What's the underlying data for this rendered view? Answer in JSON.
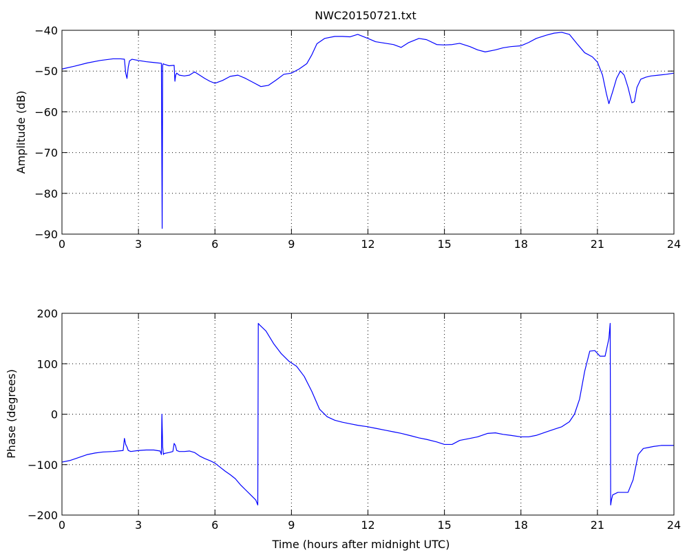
{
  "figure": {
    "title": "NWC20150721.txt",
    "line_color": "#0000ff"
  },
  "chart_data": [
    {
      "type": "line",
      "title": "NWC20150721.txt",
      "xlabel": "",
      "ylabel": "Amplitude (dB)",
      "xlim": [
        0,
        24
      ],
      "ylim": [
        -90,
        -40
      ],
      "xticks": [
        0,
        3,
        6,
        9,
        12,
        15,
        18,
        21,
        24
      ],
      "xtick_labels": [
        "0",
        "3",
        "6",
        "9",
        "12",
        "15",
        "18",
        "21",
        "24"
      ],
      "yticks": [
        -90,
        -80,
        -70,
        -60,
        -50,
        -40
      ],
      "ytick_labels": [
        "−90",
        "−80",
        "−70",
        "−60",
        "−50",
        "−40"
      ],
      "grid": true,
      "series": [
        {
          "color": "#0000ff",
          "x": [
            0,
            0.5,
            1,
            1.5,
            2,
            2.3,
            2.45,
            2.5,
            2.55,
            2.6,
            2.65,
            2.75,
            3,
            3.3,
            3.6,
            3.9,
            3.93,
            3.95,
            3.97,
            4,
            4.2,
            4.4,
            4.43,
            4.46,
            4.5,
            4.6,
            4.8,
            5,
            5.2,
            5.4,
            5.6,
            5.8,
            6,
            6.3,
            6.6,
            6.9,
            7.2,
            7.5,
            7.8,
            8.1,
            8.4,
            8.7,
            9,
            9.3,
            9.6,
            9.8,
            10,
            10.3,
            10.7,
            11,
            11.3,
            11.6,
            12,
            12.3,
            12.7,
            13,
            13.3,
            13.6,
            14,
            14.3,
            14.7,
            15,
            15.3,
            15.6,
            16,
            16.3,
            16.6,
            17,
            17.3,
            17.6,
            18,
            18.3,
            18.6,
            19,
            19.3,
            19.6,
            19.9,
            20.2,
            20.5,
            20.8,
            21,
            21.2,
            21.35,
            21.45,
            21.6,
            21.75,
            21.9,
            22.05,
            22.2,
            22.35,
            22.45,
            22.55,
            22.7,
            22.9,
            23.1,
            23.4,
            23.7,
            24
          ],
          "y": [
            -49.5,
            -48.8,
            -48.0,
            -47.4,
            -47.0,
            -47.0,
            -47.1,
            -50.5,
            -51.8,
            -49.0,
            -47.5,
            -47.1,
            -47.4,
            -47.7,
            -47.9,
            -48.1,
            -88.6,
            -48.6,
            -48.2,
            -48.3,
            -48.7,
            -48.6,
            -52.5,
            -51.0,
            -50.5,
            -51.0,
            -51.2,
            -51.0,
            -50.2,
            -51.0,
            -51.8,
            -52.5,
            -53.0,
            -52.3,
            -51.3,
            -51.0,
            -51.8,
            -52.8,
            -53.8,
            -53.5,
            -52.2,
            -50.8,
            -50.5,
            -49.5,
            -48.2,
            -46.0,
            -43.3,
            -42.0,
            -41.5,
            -41.5,
            -41.6,
            -41.0,
            -42.0,
            -42.8,
            -43.2,
            -43.5,
            -44.2,
            -43.0,
            -42.0,
            -42.3,
            -43.5,
            -43.6,
            -43.5,
            -43.2,
            -44.0,
            -44.8,
            -45.3,
            -44.8,
            -44.3,
            -44.0,
            -43.8,
            -43.0,
            -42.0,
            -41.2,
            -40.7,
            -40.5,
            -41.0,
            -43.3,
            -45.5,
            -46.5,
            -47.8,
            -51.0,
            -55.5,
            -58.0,
            -55.0,
            -51.8,
            -50.0,
            -51.0,
            -54.0,
            -57.8,
            -57.5,
            -54.0,
            -52.0,
            -51.5,
            -51.2,
            -51.0,
            -50.8,
            -50.5
          ]
        }
      ]
    },
    {
      "type": "line",
      "title": "",
      "xlabel": "Time (hours after midnight UTC)",
      "ylabel": "Phase (degrees)",
      "xlim": [
        0,
        24
      ],
      "ylim": [
        -200,
        200
      ],
      "xticks": [
        0,
        3,
        6,
        9,
        12,
        15,
        18,
        21,
        24
      ],
      "xtick_labels": [
        "0",
        "3",
        "6",
        "9",
        "12",
        "15",
        "18",
        "21",
        "24"
      ],
      "yticks": [
        -200,
        -100,
        0,
        100,
        200
      ],
      "ytick_labels": [
        "−200",
        "−100",
        "0",
        "100",
        "200"
      ],
      "grid": true,
      "series": [
        {
          "color": "#0000ff",
          "x": [
            0,
            0.3,
            0.6,
            1,
            1.3,
            1.6,
            2,
            2.4,
            2.45,
            2.5,
            2.55,
            2.6,
            2.7,
            3,
            3.3,
            3.6,
            3.85,
            3.9,
            3.92,
            3.95,
            3.98,
            4,
            4.2,
            4.35,
            4.4,
            4.45,
            4.5,
            4.6,
            4.8,
            5,
            5.2,
            5.4,
            5.6,
            5.8,
            6,
            6.2,
            6.4,
            6.6,
            6.8,
            7,
            7.2,
            7.4,
            7.6,
            7.68,
            7.7,
            7.75,
            8,
            8.3,
            8.6,
            8.9,
            9.2,
            9.5,
            9.8,
            10.1,
            10.4,
            10.7,
            11,
            11.3,
            11.6,
            12,
            12.3,
            12.7,
            13,
            13.3,
            13.7,
            14,
            14.3,
            14.7,
            15,
            15.3,
            15.6,
            16,
            16.3,
            16.7,
            17,
            17.3,
            17.6,
            18,
            18.3,
            18.6,
            19,
            19.3,
            19.6,
            19.9,
            20.1,
            20.3,
            20.5,
            20.7,
            20.9,
            21.1,
            21.3,
            21.45,
            21.5,
            21.52,
            21.55,
            21.6,
            21.8,
            22,
            22.2,
            22.4,
            22.6,
            22.8,
            23,
            23.2,
            23.5,
            23.8,
            24
          ],
          "y": [
            -95,
            -92,
            -87,
            -80,
            -77,
            -75,
            -74,
            -72,
            -48,
            -60,
            -65,
            -72,
            -74,
            -72,
            -71,
            -71,
            -73,
            -80,
            0,
            -65,
            -80,
            -78,
            -76,
            -74,
            -58,
            -62,
            -72,
            -74,
            -74,
            -73,
            -76,
            -83,
            -88,
            -92,
            -97,
            -105,
            -113,
            -120,
            -128,
            -140,
            -150,
            -160,
            -170,
            -180,
            180,
            177,
            165,
            140,
            120,
            105,
            95,
            75,
            45,
            10,
            -5,
            -12,
            -16,
            -19,
            -22,
            -25,
            -28,
            -32,
            -35,
            -38,
            -43,
            -47,
            -50,
            -55,
            -60,
            -60,
            -52,
            -48,
            -45,
            -38,
            -37,
            -40,
            -42,
            -45,
            -45,
            -42,
            -35,
            -30,
            -25,
            -15,
            0,
            30,
            85,
            125,
            126,
            115,
            115,
            150,
            180,
            -180,
            -170,
            -160,
            -155,
            -155,
            -155,
            -130,
            -80,
            -68,
            -66,
            -64,
            -62,
            -62,
            -62
          ]
        }
      ]
    }
  ]
}
